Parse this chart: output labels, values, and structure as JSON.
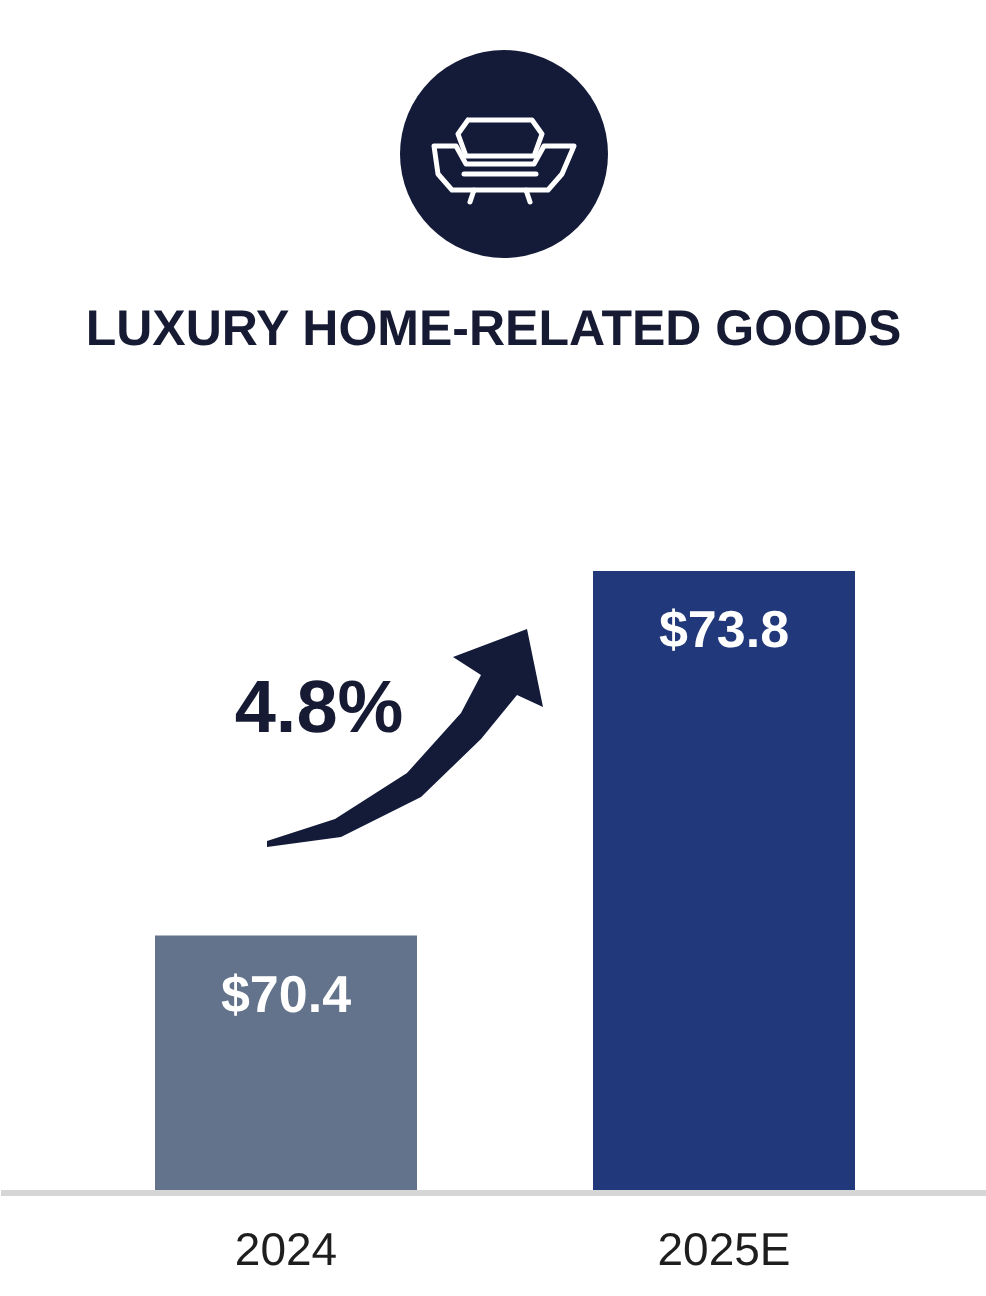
{
  "chart_data": {
    "type": "bar",
    "title": "LUXURY HOME-RELATED GOODS",
    "categories": [
      "2024",
      "2025E"
    ],
    "values": [
      70.4,
      73.8
    ],
    "colors": [
      "#62738b",
      "#21387a"
    ],
    "value_labels": [
      "$70.4",
      "$73.8"
    ],
    "annotations": [
      "4.8%"
    ],
    "ylim": [
      68,
      73.8
    ],
    "tick_labels": "x"
  }
}
